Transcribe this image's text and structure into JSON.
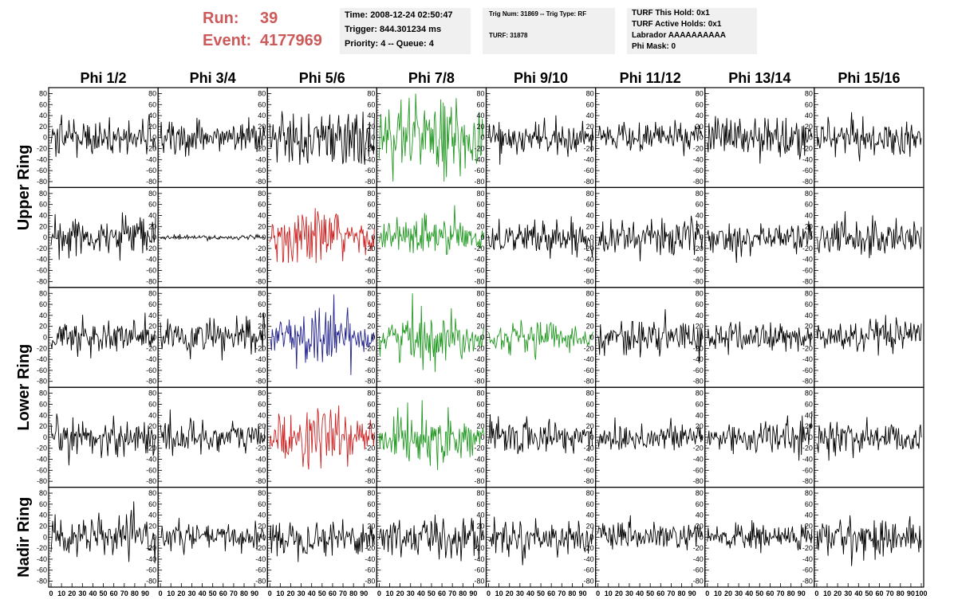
{
  "header": {
    "run_label": "Run:",
    "run_value": "39",
    "event_label": "Event:",
    "event_value": "4177969"
  },
  "box1": {
    "time": "Time: 2008-12-24 02:50:47",
    "trigger": "Trigger: 844.301234 ms",
    "priority": "Priority: 4 -- Queue: 4"
  },
  "box2": {
    "trig": "Trig Num: 31869 -- Trig Type: RF",
    "turf": "TURF: 31878"
  },
  "box3": {
    "hold": "TURF This Hold: 0x1",
    "active": "TURF Active Holds: 0x1",
    "labrador": "Labrador AAAAAAAAAA",
    "phimask": "Phi Mask: 0"
  },
  "chart_data": {
    "type": "line",
    "columns": [
      "Phi 1/2",
      "Phi 3/4",
      "Phi 5/6",
      "Phi 7/8",
      "Phi 9/10",
      "Phi 11/12",
      "Phi 13/14",
      "Phi 15/16"
    ],
    "ring_labels": [
      {
        "name": "Upper Ring",
        "rows": [
          0,
          1
        ]
      },
      {
        "name": "Lower Ring",
        "rows": [
          2,
          3
        ]
      },
      {
        "name": "Nadir Ring",
        "rows": [
          4,
          4
        ]
      }
    ],
    "rows": 5,
    "ylim": [
      -85,
      85
    ],
    "y_ticks": [
      80,
      60,
      40,
      20,
      0,
      -20,
      -40,
      -60,
      -80
    ],
    "xlim": [
      0,
      100
    ],
    "x_ticks": [
      0,
      10,
      20,
      30,
      40,
      50,
      60,
      70,
      80,
      90,
      100
    ],
    "colors": {
      "black": "#000000",
      "red": "#cc2222",
      "green": "#229922",
      "blue": "#22228f"
    },
    "panels": [
      [
        "black",
        "black",
        "black",
        "green",
        "black",
        "black",
        "black",
        "black"
      ],
      [
        "black",
        "black",
        "red",
        "green",
        "black",
        "black",
        "black",
        "black"
      ],
      [
        "black",
        "black",
        "blue",
        "green",
        "green",
        "black",
        "black",
        "black"
      ],
      [
        "black",
        "black",
        "red",
        "green",
        "black",
        "black",
        "black",
        "black"
      ],
      [
        "black",
        "black",
        "black",
        "black",
        "black",
        "black",
        "black",
        "black"
      ]
    ],
    "amplitudes": [
      [
        15,
        15,
        25,
        45,
        14,
        14,
        17,
        16
      ],
      [
        17,
        2,
        30,
        25,
        15,
        16,
        14,
        18
      ],
      [
        17,
        16,
        30,
        28,
        17,
        15,
        14,
        15
      ],
      [
        17,
        16,
        30,
        27,
        16,
        14,
        16,
        16
      ],
      [
        17,
        12,
        16,
        20,
        15,
        12,
        13,
        17
      ]
    ]
  }
}
